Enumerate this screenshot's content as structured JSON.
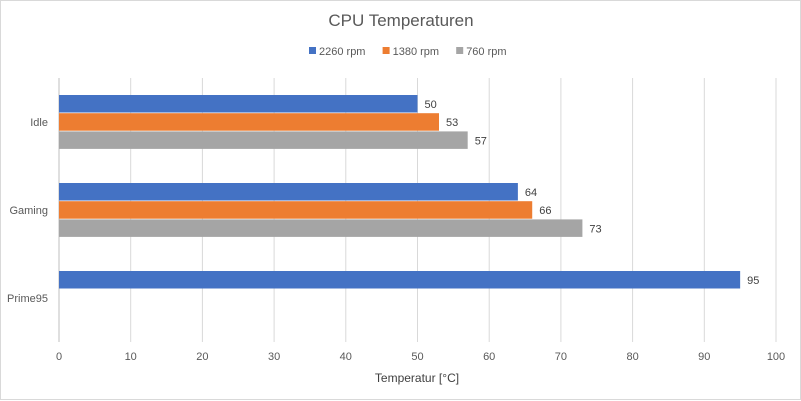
{
  "chart_data": {
    "type": "bar",
    "orientation": "horizontal",
    "title": "CPU Temperaturen",
    "xlabel": "Temperatur [°C]",
    "ylabel": "",
    "categories": [
      "Idle",
      "Gaming",
      "Prime95"
    ],
    "series": [
      {
        "name": "2260 rpm",
        "color": "#4472c4",
        "values": [
          50,
          64,
          95
        ]
      },
      {
        "name": "1380 rpm",
        "color": "#ed7d31",
        "values": [
          53,
          66,
          null
        ]
      },
      {
        "name": "760 rpm",
        "color": "#a5a5a5",
        "values": [
          57,
          73,
          null
        ]
      }
    ],
    "xlim": [
      0,
      100
    ],
    "xticks": [
      0,
      10,
      20,
      30,
      40,
      50,
      60,
      70,
      80,
      90,
      100
    ],
    "grid": "vertical",
    "legend": "top",
    "data_labels": true
  }
}
